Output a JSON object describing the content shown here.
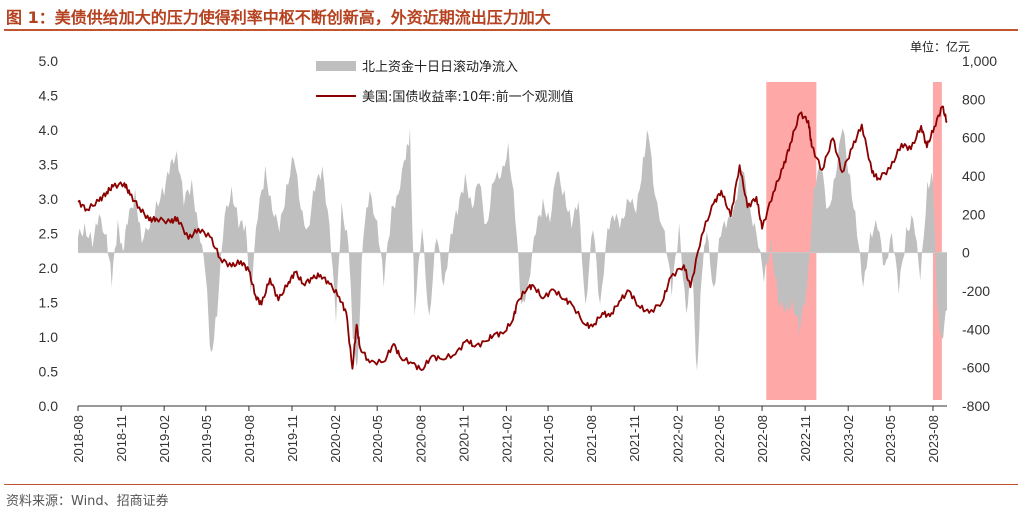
{
  "figure": {
    "title": "图 1：美债供给加大的压力使得利率中枢不断创新高，外资近期流出压力加大",
    "unit_label": "单位：亿元",
    "source": "资料来源：Wind、招商证券"
  },
  "chart_data": {
    "type": "line+area",
    "legend_placement": "top-center",
    "grid": false,
    "series": [
      {
        "name": "北上资金十日日滚动净流入",
        "type": "area",
        "axis": "right",
        "color": "#bfbfbf"
      },
      {
        "name": "美国:国债收益率:10年:前一个观测值",
        "type": "line",
        "axis": "left",
        "color": "#8b0000"
      }
    ],
    "left_axis": {
      "ylim": [
        0,
        5
      ],
      "ticks": [
        "0.0",
        "0.5",
        "1.0",
        "1.5",
        "2.0",
        "2.5",
        "3.0",
        "3.5",
        "4.0",
        "4.5",
        "5.0"
      ]
    },
    "right_axis": {
      "ylim": [
        -800,
        1000
      ],
      "ticks": [
        "-800",
        "-600",
        "-400",
        "-200",
        "0",
        "200",
        "400",
        "600",
        "800",
        "1,000"
      ]
    },
    "x_ticks": [
      "2018-08",
      "2018-11",
      "2019-02",
      "2019-05",
      "2019-08",
      "2019-11",
      "2020-02",
      "2020-05",
      "2020-08",
      "2020-11",
      "2021-02",
      "2021-05",
      "2021-08",
      "2021-11",
      "2022-02",
      "2022-05",
      "2022-08",
      "2022-11",
      "2023-02",
      "2023-05",
      "2023-08"
    ],
    "highlight_ranges": [
      [
        "2022-08-10",
        "2022-11-25"
      ],
      [
        "2023-08-01",
        "2023-08-20"
      ]
    ],
    "highlight_color": "#ff9999",
    "yield_points": [
      [
        "2018-08-01",
        2.96
      ],
      [
        "2018-08-20",
        2.85
      ],
      [
        "2018-09-15",
        2.97
      ],
      [
        "2018-10-01",
        3.1
      ],
      [
        "2018-10-15",
        3.18
      ],
      [
        "2018-11-08",
        3.23
      ],
      [
        "2018-11-20",
        3.06
      ],
      [
        "2018-12-10",
        2.88
      ],
      [
        "2018-12-31",
        2.69
      ],
      [
        "2019-01-15",
        2.72
      ],
      [
        "2019-02-15",
        2.66
      ],
      [
        "2019-03-01",
        2.73
      ],
      [
        "2019-03-25",
        2.42
      ],
      [
        "2019-04-15",
        2.57
      ],
      [
        "2019-05-10",
        2.45
      ],
      [
        "2019-06-01",
        2.14
      ],
      [
        "2019-06-25",
        2.02
      ],
      [
        "2019-07-15",
        2.1
      ],
      [
        "2019-08-01",
        1.96
      ],
      [
        "2019-08-15",
        1.6
      ],
      [
        "2019-08-28",
        1.47
      ],
      [
        "2019-09-15",
        1.85
      ],
      [
        "2019-10-03",
        1.53
      ],
      [
        "2019-10-25",
        1.8
      ],
      [
        "2019-11-08",
        1.94
      ],
      [
        "2019-11-25",
        1.77
      ],
      [
        "2019-12-15",
        1.85
      ],
      [
        "2020-01-01",
        1.9
      ],
      [
        "2020-01-20",
        1.77
      ],
      [
        "2020-02-10",
        1.58
      ],
      [
        "2020-02-25",
        1.35
      ],
      [
        "2020-03-09",
        0.54
      ],
      [
        "2020-03-18",
        1.18
      ],
      [
        "2020-03-25",
        0.85
      ],
      [
        "2020-04-15",
        0.63
      ],
      [
        "2020-05-15",
        0.64
      ],
      [
        "2020-06-05",
        0.9
      ],
      [
        "2020-06-20",
        0.7
      ],
      [
        "2020-07-15",
        0.62
      ],
      [
        "2020-08-04",
        0.52
      ],
      [
        "2020-08-25",
        0.72
      ],
      [
        "2020-09-15",
        0.68
      ],
      [
        "2020-10-15",
        0.75
      ],
      [
        "2020-11-09",
        0.96
      ],
      [
        "2020-11-25",
        0.86
      ],
      [
        "2020-12-20",
        0.94
      ],
      [
        "2021-01-06",
        1.04
      ],
      [
        "2021-01-25",
        1.05
      ],
      [
        "2021-02-15",
        1.25
      ],
      [
        "2021-02-25",
        1.52
      ],
      [
        "2021-03-19",
        1.72
      ],
      [
        "2021-03-31",
        1.74
      ],
      [
        "2021-04-20",
        1.56
      ],
      [
        "2021-05-12",
        1.69
      ],
      [
        "2021-06-04",
        1.55
      ],
      [
        "2021-06-20",
        1.48
      ],
      [
        "2021-07-19",
        1.18
      ],
      [
        "2021-08-04",
        1.15
      ],
      [
        "2021-08-25",
        1.35
      ],
      [
        "2021-09-10",
        1.3
      ],
      [
        "2021-09-30",
        1.52
      ],
      [
        "2021-10-21",
        1.67
      ],
      [
        "2021-11-10",
        1.45
      ],
      [
        "2021-12-03",
        1.35
      ],
      [
        "2021-12-31",
        1.51
      ],
      [
        "2022-01-18",
        1.87
      ],
      [
        "2022-02-15",
        2.04
      ],
      [
        "2022-03-01",
        1.72
      ],
      [
        "2022-03-25",
        2.48
      ],
      [
        "2022-04-20",
        2.94
      ],
      [
        "2022-05-06",
        3.12
      ],
      [
        "2022-05-26",
        2.75
      ],
      [
        "2022-06-14",
        3.49
      ],
      [
        "2022-07-01",
        2.88
      ],
      [
        "2022-07-20",
        3.03
      ],
      [
        "2022-08-01",
        2.57
      ],
      [
        "2022-08-25",
        3.1
      ],
      [
        "2022-09-15",
        3.45
      ],
      [
        "2022-09-30",
        3.8
      ],
      [
        "2022-10-21",
        4.24
      ],
      [
        "2022-11-08",
        4.13
      ],
      [
        "2022-11-15",
        3.76
      ],
      [
        "2022-12-07",
        3.42
      ],
      [
        "2022-12-30",
        3.88
      ],
      [
        "2023-01-19",
        3.39
      ],
      [
        "2023-02-10",
        3.74
      ],
      [
        "2023-03-02",
        4.08
      ],
      [
        "2023-03-24",
        3.38
      ],
      [
        "2023-04-06",
        3.3
      ],
      [
        "2023-05-02",
        3.44
      ],
      [
        "2023-05-26",
        3.8
      ],
      [
        "2023-06-15",
        3.72
      ],
      [
        "2023-07-07",
        4.06
      ],
      [
        "2023-07-19",
        3.75
      ],
      [
        "2023-08-04",
        4.05
      ],
      [
        "2023-08-21",
        4.34
      ],
      [
        "2023-08-31",
        4.11
      ]
    ],
    "flow_points": [
      [
        "2018-08-01",
        80
      ],
      [
        "2018-08-15",
        130
      ],
      [
        "2018-09-01",
        60
      ],
      [
        "2018-09-15",
        180
      ],
      [
        "2018-10-01",
        90
      ],
      [
        "2018-10-12",
        -150
      ],
      [
        "2018-10-25",
        140
      ],
      [
        "2018-11-05",
        20
      ],
      [
        "2018-11-15",
        160
      ],
      [
        "2018-12-01",
        300
      ],
      [
        "2018-12-15",
        80
      ],
      [
        "2019-01-01",
        120
      ],
      [
        "2019-01-15",
        250
      ],
      [
        "2019-02-01",
        330
      ],
      [
        "2019-02-15",
        450
      ],
      [
        "2019-02-28",
        530
      ],
      [
        "2019-03-15",
        270
      ],
      [
        "2019-04-01",
        350
      ],
      [
        "2019-04-15",
        150
      ],
      [
        "2019-05-01",
        -120
      ],
      [
        "2019-05-12",
        -550
      ],
      [
        "2019-05-25",
        -300
      ],
      [
        "2019-06-10",
        180
      ],
      [
        "2019-06-25",
        330
      ],
      [
        "2019-07-10",
        160
      ],
      [
        "2019-07-25",
        120
      ],
      [
        "2019-08-05",
        -200
      ],
      [
        "2019-08-20",
        200
      ],
      [
        "2019-09-05",
        420
      ],
      [
        "2019-09-20",
        240
      ],
      [
        "2019-10-05",
        110
      ],
      [
        "2019-10-20",
        330
      ],
      [
        "2019-11-05",
        520
      ],
      [
        "2019-11-20",
        210
      ],
      [
        "2019-12-05",
        120
      ],
      [
        "2019-12-20",
        350
      ],
      [
        "2020-01-05",
        420
      ],
      [
        "2020-01-20",
        160
      ],
      [
        "2020-02-03",
        -350
      ],
      [
        "2020-02-15",
        230
      ],
      [
        "2020-03-01",
        60
      ],
      [
        "2020-03-10",
        -450
      ],
      [
        "2020-03-20",
        -600
      ],
      [
        "2020-04-01",
        100
      ],
      [
        "2020-04-15",
        300
      ],
      [
        "2020-05-01",
        160
      ],
      [
        "2020-05-15",
        -150
      ],
      [
        "2020-06-01",
        210
      ],
      [
        "2020-06-15",
        320
      ],
      [
        "2020-07-01",
        500
      ],
      [
        "2020-07-10",
        620
      ],
      [
        "2020-07-20",
        -300
      ],
      [
        "2020-08-05",
        120
      ],
      [
        "2020-08-20",
        -350
      ],
      [
        "2020-09-05",
        110
      ],
      [
        "2020-09-20",
        -200
      ],
      [
        "2020-10-05",
        100
      ],
      [
        "2020-10-20",
        220
      ],
      [
        "2020-11-05",
        380
      ],
      [
        "2020-11-20",
        250
      ],
      [
        "2020-12-05",
        370
      ],
      [
        "2020-12-20",
        120
      ],
      [
        "2021-01-05",
        400
      ],
      [
        "2021-01-20",
        380
      ],
      [
        "2021-02-05",
        560
      ],
      [
        "2021-02-20",
        200
      ],
      [
        "2021-03-05",
        -300
      ],
      [
        "2021-03-20",
        -150
      ],
      [
        "2021-04-05",
        120
      ],
      [
        "2021-04-20",
        250
      ],
      [
        "2021-05-05",
        180
      ],
      [
        "2021-05-20",
        420
      ],
      [
        "2021-06-05",
        300
      ],
      [
        "2021-06-20",
        160
      ],
      [
        "2021-07-05",
        250
      ],
      [
        "2021-07-20",
        -280
      ],
      [
        "2021-08-05",
        150
      ],
      [
        "2021-08-20",
        -300
      ],
      [
        "2021-09-05",
        140
      ],
      [
        "2021-09-20",
        180
      ],
      [
        "2021-10-05",
        150
      ],
      [
        "2021-10-20",
        300
      ],
      [
        "2021-11-05",
        200
      ],
      [
        "2021-11-20",
        480
      ],
      [
        "2021-12-01",
        650
      ],
      [
        "2021-12-15",
        280
      ],
      [
        "2022-01-05",
        110
      ],
      [
        "2022-01-20",
        -200
      ],
      [
        "2022-02-05",
        120
      ],
      [
        "2022-02-20",
        -300
      ],
      [
        "2022-03-05",
        -100
      ],
      [
        "2022-03-15",
        -650
      ],
      [
        "2022-03-25",
        -100
      ],
      [
        "2022-04-05",
        100
      ],
      [
        "2022-04-20",
        -200
      ],
      [
        "2022-05-05",
        120
      ],
      [
        "2022-05-20",
        150
      ],
      [
        "2022-06-05",
        270
      ],
      [
        "2022-06-20",
        450
      ],
      [
        "2022-07-05",
        220
      ],
      [
        "2022-07-20",
        120
      ],
      [
        "2022-08-05",
        -150
      ],
      [
        "2022-08-20",
        50
      ],
      [
        "2022-09-05",
        -250
      ],
      [
        "2022-09-20",
        -320
      ],
      [
        "2022-10-05",
        -250
      ],
      [
        "2022-10-20",
        -400
      ],
      [
        "2022-11-05",
        -200
      ],
      [
        "2022-11-20",
        350
      ],
      [
        "2022-12-05",
        450
      ],
      [
        "2022-12-20",
        200
      ],
      [
        "2023-01-05",
        420
      ],
      [
        "2023-01-20",
        650
      ],
      [
        "2023-02-05",
        380
      ],
      [
        "2023-02-20",
        120
      ],
      [
        "2023-03-05",
        -200
      ],
      [
        "2023-03-20",
        100
      ],
      [
        "2023-04-05",
        150
      ],
      [
        "2023-04-20",
        -100
      ],
      [
        "2023-05-05",
        120
      ],
      [
        "2023-05-20",
        -200
      ],
      [
        "2023-06-05",
        100
      ],
      [
        "2023-06-20",
        200
      ],
      [
        "2023-07-05",
        -150
      ],
      [
        "2023-07-20",
        350
      ],
      [
        "2023-08-01",
        400
      ],
      [
        "2023-08-10",
        -300
      ],
      [
        "2023-08-20",
        -450
      ],
      [
        "2023-08-31",
        -300
      ]
    ]
  }
}
